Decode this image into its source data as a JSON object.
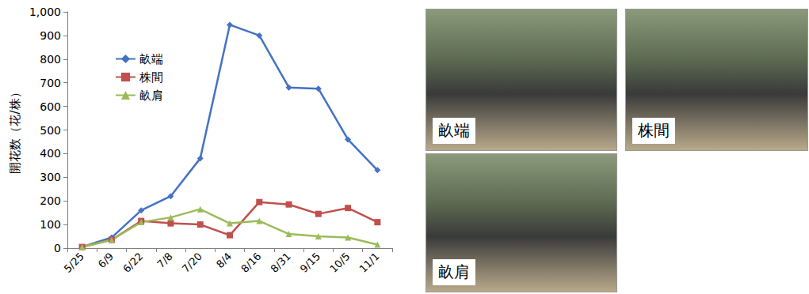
{
  "chart_data": {
    "type": "line",
    "y_label": "開花数（花/株）",
    "categories": [
      "5/25",
      "6/9",
      "6/22",
      "7/8",
      "7/20",
      "8/4",
      "8/16",
      "8/31",
      "9/15",
      "10/5",
      "11/1"
    ],
    "series": [
      {
        "name": "畝端",
        "color": "#4472c4",
        "marker": "diamond",
        "values": [
          5,
          45,
          160,
          220,
          380,
          945,
          900,
          680,
          675,
          460,
          330
        ]
      },
      {
        "name": "株間",
        "color": "#c0504d",
        "marker": "square",
        "values": [
          5,
          35,
          115,
          105,
          100,
          55,
          195,
          185,
          145,
          170,
          110
        ]
      },
      {
        "name": "畝肩",
        "color": "#9bbb59",
        "marker": "triangle",
        "values": [
          5,
          35,
          110,
          130,
          165,
          105,
          115,
          60,
          50,
          45,
          15
        ]
      }
    ],
    "ylim": [
      0,
      1000
    ],
    "yticks": [
      0,
      100,
      200,
      300,
      400,
      500,
      600,
      700,
      800,
      900,
      1000
    ],
    "grid": false,
    "legend": "upper left"
  },
  "photos": [
    {
      "label": "畝端"
    },
    {
      "label": "株間"
    },
    {
      "label": "畝肩"
    }
  ]
}
